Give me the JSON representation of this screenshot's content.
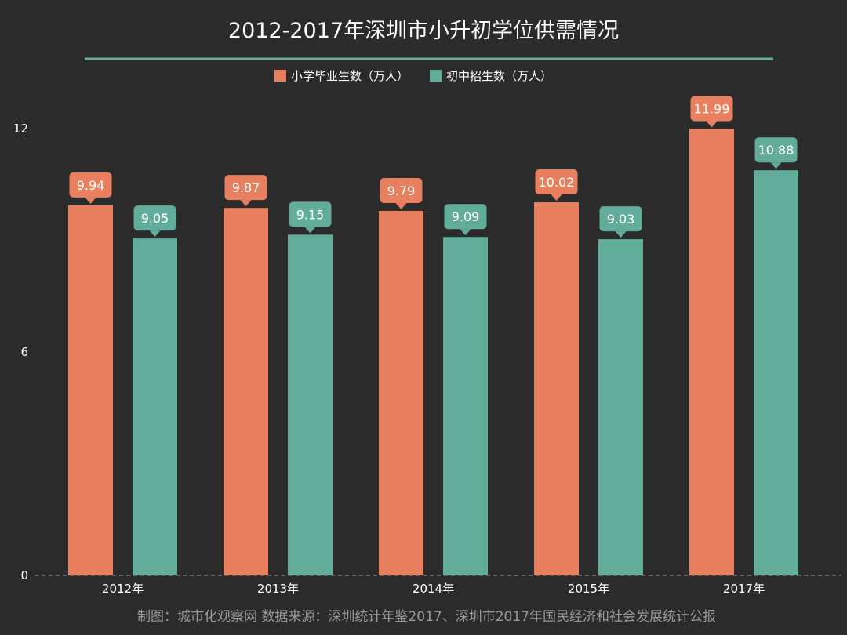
{
  "colors": {
    "background": "#2b2b2b",
    "series1": "#e8805f",
    "series2": "#62ad99",
    "title_rule": "#62ad99",
    "baseline": "#9a9a9a"
  },
  "chart_data": {
    "type": "bar",
    "title": "2012-2017年深圳市小升初学位供需情况",
    "xlabel": "",
    "ylabel": "",
    "categories": [
      "2012年",
      "2013年",
      "2014年",
      "2015年",
      "2017年"
    ],
    "series": [
      {
        "name": "小学毕业生数（万人）",
        "values": [
          9.94,
          9.87,
          9.79,
          10.02,
          11.99
        ]
      },
      {
        "name": "初中招生数（万人）",
        "values": [
          9.05,
          9.15,
          9.09,
          9.03,
          10.88
        ]
      }
    ],
    "ylim": [
      0,
      12
    ],
    "yticks": [
      "0",
      "6",
      "12"
    ],
    "grid": false,
    "legend_position": "top-center",
    "data_labels": true,
    "source": "制图：城市化观察网  数据来源：深圳统计年鉴2017、深圳市2017年国民经济和社会发展统计公报"
  }
}
